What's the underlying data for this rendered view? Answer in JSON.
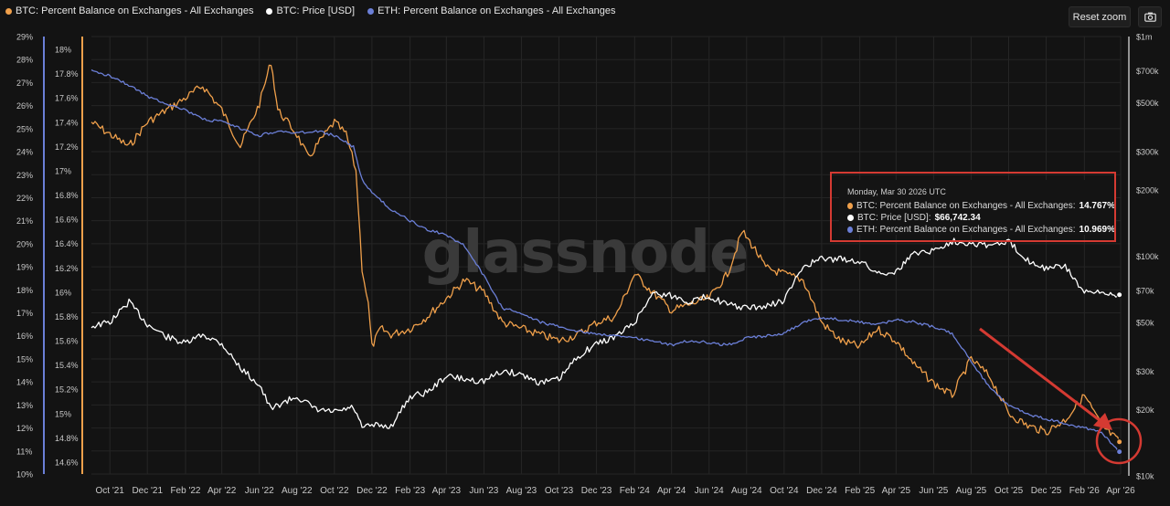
{
  "legend": {
    "items": [
      {
        "label": "BTC: Percent Balance on Exchanges - All Exchanges",
        "color": "#f0a04b"
      },
      {
        "label": "BTC: Price [USD]",
        "color": "#ffffff"
      },
      {
        "label": "ETH: Percent Balance on Exchanges - All Exchanges",
        "color": "#6b7fd7"
      }
    ]
  },
  "toolbar": {
    "reset_label": "Reset zoom",
    "camera_icon": "camera-icon"
  },
  "watermark": "glassnode",
  "tooltip": {
    "date": "Monday, Mar 30 2026 UTC",
    "rows": [
      {
        "label": "BTC: Percent Balance on Exchanges - All Exchanges: ",
        "value": "14.767%",
        "color": "#f0a04b"
      },
      {
        "label": "BTC: Price [USD]: ",
        "value": "$66,742.34",
        "color": "#ffffff"
      },
      {
        "label": "ETH: Percent Balance on Exchanges - All Exchanges: ",
        "value": "10.969%",
        "color": "#6b7fd7"
      }
    ]
  },
  "colors": {
    "btc": "#f0a04b",
    "price": "#ffffff",
    "eth": "#6b7fd7",
    "annotation": "#d43a32",
    "background": "#131313"
  },
  "chart_data": {
    "type": "line",
    "x_ticks": [
      "Oct '21",
      "Dec '21",
      "Feb '22",
      "Apr '22",
      "Jun '22",
      "Aug '22",
      "Oct '22",
      "Dec '22",
      "Feb '23",
      "Apr '23",
      "Jun '23",
      "Aug '23",
      "Oct '23",
      "Dec '23",
      "Feb '24",
      "Apr '24",
      "Jun '24",
      "Aug '24",
      "Oct '24",
      "Dec '24",
      "Feb '25",
      "Apr '25",
      "Jun '25",
      "Aug '25",
      "Oct '25",
      "Dec '25",
      "Feb '26",
      "Apr '26"
    ],
    "y_axes": {
      "eth": {
        "ticks": [
          "29%",
          "28%",
          "27%",
          "26%",
          "25%",
          "24%",
          "23%",
          "22%",
          "21%",
          "20%",
          "19%",
          "18%",
          "17%",
          "16%",
          "15%",
          "14%",
          "13%",
          "12%",
          "11%",
          "10%"
        ],
        "range": [
          10,
          29
        ]
      },
      "btc": {
        "ticks": [
          "18%",
          "17.8%",
          "17.6%",
          "17.4%",
          "17.2%",
          "17%",
          "16.8%",
          "16.6%",
          "16.4%",
          "16.2%",
          "16%",
          "15.8%",
          "15.6%",
          "15.4%",
          "15.2%",
          "15%",
          "14.8%",
          "14.6%"
        ],
        "range": [
          14.5,
          18.1
        ]
      },
      "price": {
        "ticks": [
          "$1m",
          "$700k",
          "$500k",
          "$300k",
          "$200k",
          "$100k",
          "$70k",
          "$50k",
          "$30k",
          "$20k",
          "$10k"
        ],
        "values": [
          1000000,
          700000,
          500000,
          300000,
          200000,
          100000,
          70000,
          50000,
          30000,
          20000,
          10000
        ],
        "scale": "log",
        "range": [
          10000,
          1000000
        ]
      }
    },
    "series": [
      {
        "name": "BTC: Percent Balance on Exchanges - All Exchanges",
        "axis": "btc",
        "points": [
          [
            "2021-09-01",
            17.4
          ],
          [
            "2021-10-01",
            17.3
          ],
          [
            "2021-11-01",
            17.2
          ],
          [
            "2021-12-01",
            17.4
          ],
          [
            "2022-01-01",
            17.5
          ],
          [
            "2022-02-01",
            17.6
          ],
          [
            "2022-03-01",
            17.7
          ],
          [
            "2022-04-01",
            17.5
          ],
          [
            "2022-05-01",
            17.2
          ],
          [
            "2022-06-01",
            17.55
          ],
          [
            "2022-06-20",
            17.9
          ],
          [
            "2022-07-01",
            17.5
          ],
          [
            "2022-08-01",
            17.3
          ],
          [
            "2022-08-20",
            17.1
          ],
          [
            "2022-09-01",
            17.2
          ],
          [
            "2022-10-01",
            17.4
          ],
          [
            "2022-10-20",
            17.3
          ],
          [
            "2022-11-05",
            17.0
          ],
          [
            "2022-11-15",
            16.2
          ],
          [
            "2022-11-25",
            15.9
          ],
          [
            "2022-12-01",
            15.55
          ],
          [
            "2022-12-15",
            15.7
          ],
          [
            "2023-01-01",
            15.65
          ],
          [
            "2023-02-01",
            15.7
          ],
          [
            "2023-03-01",
            15.8
          ],
          [
            "2023-04-01",
            15.95
          ],
          [
            "2023-05-01",
            16.1
          ],
          [
            "2023-06-01",
            16.0
          ],
          [
            "2023-07-01",
            15.75
          ],
          [
            "2023-08-01",
            15.7
          ],
          [
            "2023-09-01",
            15.65
          ],
          [
            "2023-10-01",
            15.6
          ],
          [
            "2023-11-01",
            15.65
          ],
          [
            "2023-12-01",
            15.75
          ],
          [
            "2024-01-01",
            15.8
          ],
          [
            "2024-02-01",
            16.15
          ],
          [
            "2024-03-01",
            16.0
          ],
          [
            "2024-04-01",
            15.85
          ],
          [
            "2024-05-01",
            15.9
          ],
          [
            "2024-06-01",
            15.95
          ],
          [
            "2024-07-01",
            16.15
          ],
          [
            "2024-07-25",
            16.5
          ],
          [
            "2024-08-15",
            16.35
          ],
          [
            "2024-09-01",
            16.2
          ],
          [
            "2024-10-01",
            16.15
          ],
          [
            "2024-11-01",
            16.1
          ],
          [
            "2024-12-01",
            15.75
          ],
          [
            "2025-01-01",
            15.6
          ],
          [
            "2025-02-01",
            15.55
          ],
          [
            "2025-03-01",
            15.7
          ],
          [
            "2025-04-01",
            15.6
          ],
          [
            "2025-05-01",
            15.4
          ],
          [
            "2025-06-01",
            15.25
          ],
          [
            "2025-07-01",
            15.15
          ],
          [
            "2025-08-01",
            15.45
          ],
          [
            "2025-09-01",
            15.3
          ],
          [
            "2025-10-01",
            15.0
          ],
          [
            "2025-11-01",
            14.9
          ],
          [
            "2025-12-01",
            14.85
          ],
          [
            "2026-01-01",
            14.95
          ],
          [
            "2026-02-01",
            15.15
          ],
          [
            "2026-03-01",
            14.9
          ],
          [
            "2026-03-30",
            14.767
          ]
        ]
      },
      {
        "name": "BTC: Price [USD]",
        "axis": "price",
        "points": [
          [
            "2021-09-01",
            48000
          ],
          [
            "2021-10-01",
            50000
          ],
          [
            "2021-11-01",
            62000
          ],
          [
            "2021-12-01",
            49000
          ],
          [
            "2022-01-01",
            43000
          ],
          [
            "2022-02-01",
            40000
          ],
          [
            "2022-03-01",
            44000
          ],
          [
            "2022-04-01",
            40000
          ],
          [
            "2022-05-01",
            31000
          ],
          [
            "2022-06-01",
            26000
          ],
          [
            "2022-06-20",
            20000
          ],
          [
            "2022-07-01",
            21000
          ],
          [
            "2022-08-01",
            23000
          ],
          [
            "2022-09-01",
            20000
          ],
          [
            "2022-10-01",
            19500
          ],
          [
            "2022-11-01",
            20500
          ],
          [
            "2022-11-15",
            16500
          ],
          [
            "2022-12-01",
            17000
          ],
          [
            "2023-01-01",
            16800
          ],
          [
            "2023-02-01",
            23000
          ],
          [
            "2023-03-01",
            24000
          ],
          [
            "2023-04-01",
            28500
          ],
          [
            "2023-05-01",
            27500
          ],
          [
            "2023-06-01",
            27000
          ],
          [
            "2023-07-01",
            30000
          ],
          [
            "2023-08-01",
            29000
          ],
          [
            "2023-09-01",
            26500
          ],
          [
            "2023-10-01",
            27500
          ],
          [
            "2023-11-01",
            35000
          ],
          [
            "2023-12-01",
            40000
          ],
          [
            "2024-01-01",
            43000
          ],
          [
            "2024-02-01",
            50000
          ],
          [
            "2024-03-01",
            68000
          ],
          [
            "2024-04-01",
            66000
          ],
          [
            "2024-05-01",
            62000
          ],
          [
            "2024-06-01",
            66000
          ],
          [
            "2024-07-01",
            60000
          ],
          [
            "2024-08-01",
            58000
          ],
          [
            "2024-09-01",
            59000
          ],
          [
            "2024-10-01",
            63000
          ],
          [
            "2024-11-01",
            90000
          ],
          [
            "2024-12-01",
            97000
          ],
          [
            "2025-01-01",
            97000
          ],
          [
            "2025-02-01",
            95000
          ],
          [
            "2025-03-01",
            84000
          ],
          [
            "2025-04-01",
            85000
          ],
          [
            "2025-05-01",
            104000
          ],
          [
            "2025-06-01",
            106000
          ],
          [
            "2025-07-01",
            117000
          ],
          [
            "2025-08-01",
            115000
          ],
          [
            "2025-09-01",
            112000
          ],
          [
            "2025-10-01",
            116000
          ],
          [
            "2025-11-01",
            96000
          ],
          [
            "2025-12-01",
            88000
          ],
          [
            "2026-01-01",
            90000
          ],
          [
            "2026-02-01",
            68000
          ],
          [
            "2026-03-01",
            68000
          ],
          [
            "2026-03-30",
            66742.34
          ]
        ]
      },
      {
        "name": "ETH: Percent Balance on Exchanges - All Exchanges",
        "axis": "eth",
        "points": [
          [
            "2021-09-01",
            27.5
          ],
          [
            "2021-10-01",
            27.3
          ],
          [
            "2021-11-01",
            26.9
          ],
          [
            "2021-12-01",
            26.4
          ],
          [
            "2022-01-01",
            26.1
          ],
          [
            "2022-02-01",
            25.8
          ],
          [
            "2022-03-01",
            25.4
          ],
          [
            "2022-04-01",
            25.3
          ],
          [
            "2022-05-01",
            25.0
          ],
          [
            "2022-06-01",
            24.7
          ],
          [
            "2022-07-01",
            24.9
          ],
          [
            "2022-08-01",
            24.8
          ],
          [
            "2022-09-01",
            24.9
          ],
          [
            "2022-10-01",
            24.7
          ],
          [
            "2022-11-01",
            24.2
          ],
          [
            "2022-11-15",
            22.8
          ],
          [
            "2022-12-01",
            22.2
          ],
          [
            "2023-01-01",
            21.5
          ],
          [
            "2023-02-01",
            21.0
          ],
          [
            "2023-03-01",
            20.6
          ],
          [
            "2023-04-01",
            20.4
          ],
          [
            "2023-05-01",
            19.9
          ],
          [
            "2023-06-01",
            18.6
          ],
          [
            "2023-07-01",
            17.2
          ],
          [
            "2023-08-01",
            17.0
          ],
          [
            "2023-09-01",
            16.6
          ],
          [
            "2023-10-01",
            16.4
          ],
          [
            "2023-11-01",
            16.2
          ],
          [
            "2023-12-01",
            16.1
          ],
          [
            "2024-01-01",
            16.0
          ],
          [
            "2024-02-01",
            15.9
          ],
          [
            "2024-03-01",
            15.8
          ],
          [
            "2024-04-01",
            15.6
          ],
          [
            "2024-05-01",
            15.8
          ],
          [
            "2024-06-01",
            15.7
          ],
          [
            "2024-07-01",
            15.6
          ],
          [
            "2024-08-01",
            15.9
          ],
          [
            "2024-09-01",
            16.0
          ],
          [
            "2024-10-01",
            16.1
          ],
          [
            "2024-11-01",
            16.6
          ],
          [
            "2024-12-01",
            16.8
          ],
          [
            "2025-01-01",
            16.7
          ],
          [
            "2025-02-01",
            16.6
          ],
          [
            "2025-03-01",
            16.5
          ],
          [
            "2025-04-01",
            16.7
          ],
          [
            "2025-05-01",
            16.6
          ],
          [
            "2025-06-01",
            16.4
          ],
          [
            "2025-07-01",
            16.1
          ],
          [
            "2025-08-01",
            14.9
          ],
          [
            "2025-09-01",
            13.7
          ],
          [
            "2025-10-01",
            13.0
          ],
          [
            "2025-11-01",
            12.6
          ],
          [
            "2025-12-01",
            12.4
          ],
          [
            "2026-01-01",
            12.2
          ],
          [
            "2026-02-01",
            12.0
          ],
          [
            "2026-03-01",
            11.8
          ],
          [
            "2026-03-30",
            10.969
          ]
        ]
      }
    ],
    "legend_position": "top-left",
    "grid": true
  }
}
